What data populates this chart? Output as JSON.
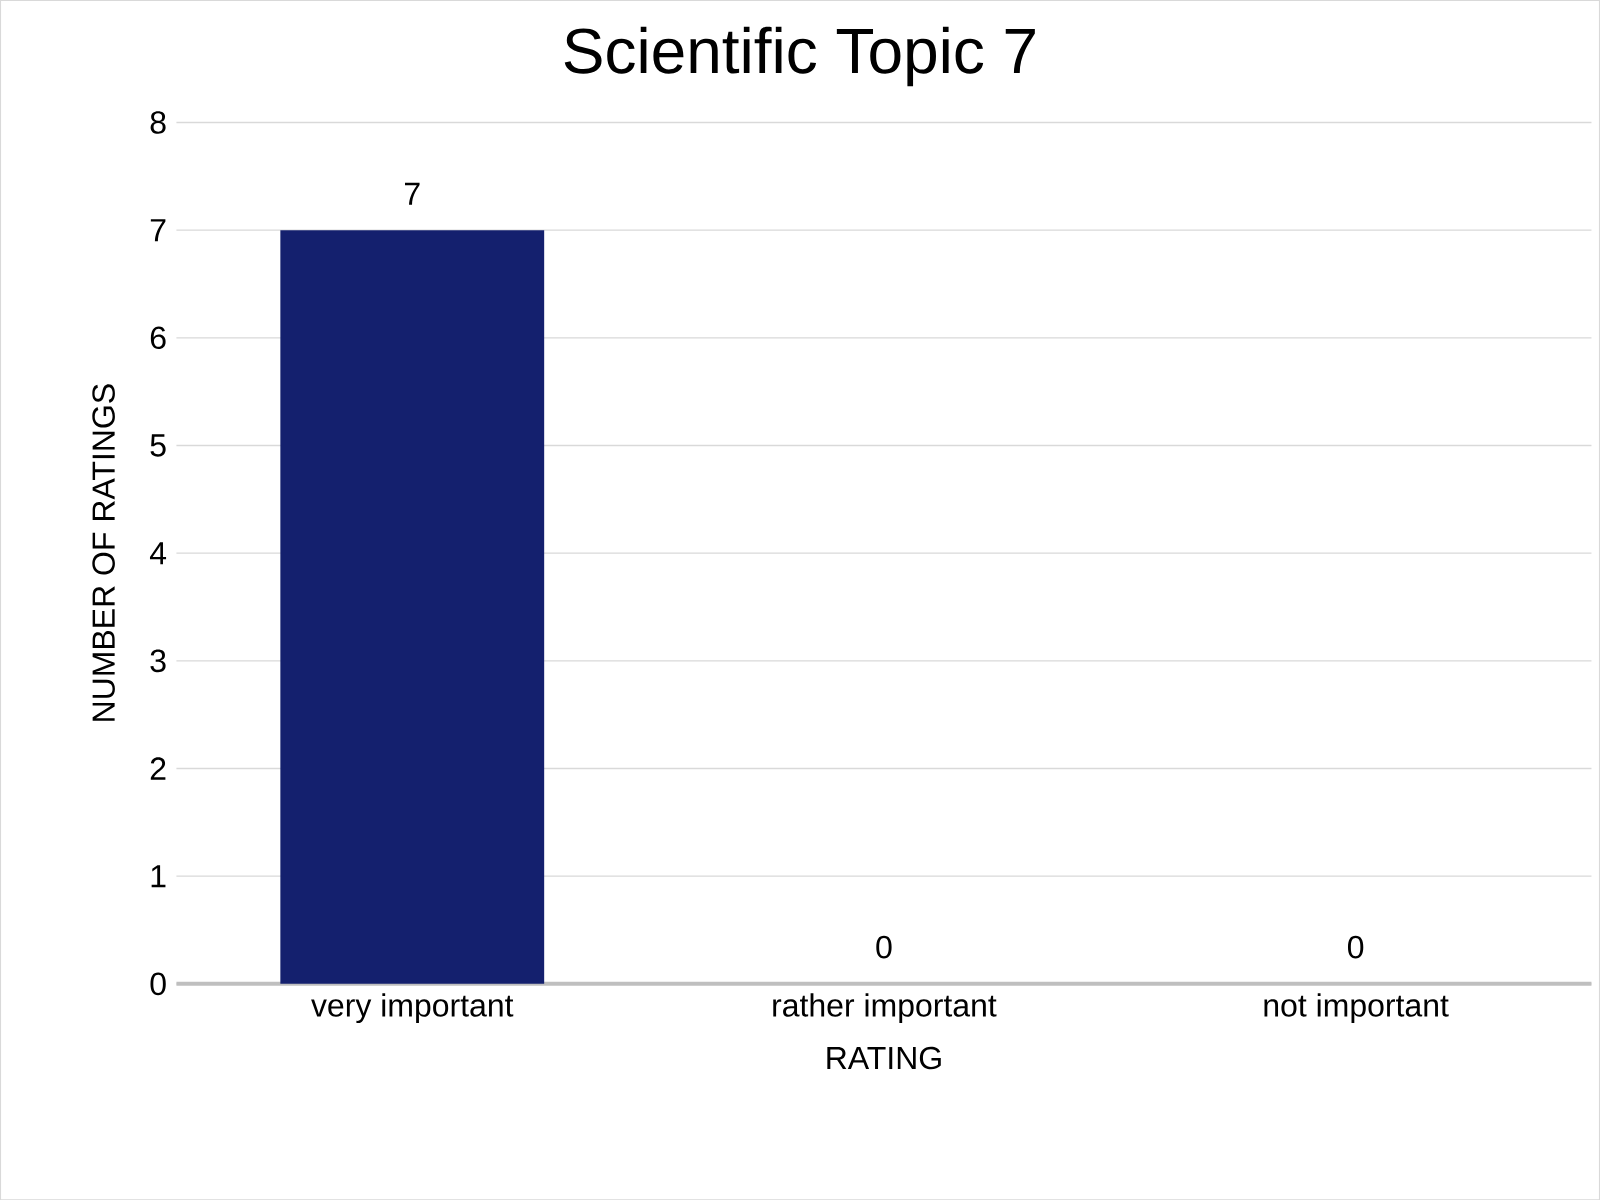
{
  "chart_data": {
    "type": "bar",
    "title": "Scientific Topic 7",
    "xlabel": "RATING",
    "ylabel": "NUMBER OF RATINGS",
    "categories": [
      "very important",
      "rather important",
      "not important"
    ],
    "values": [
      7,
      0,
      0
    ],
    "color": "#14206e",
    "ylim": [
      0,
      8
    ],
    "yticks": [
      0,
      1,
      2,
      3,
      4,
      5,
      6,
      7,
      8
    ],
    "grid": "y",
    "data_labels": true
  }
}
